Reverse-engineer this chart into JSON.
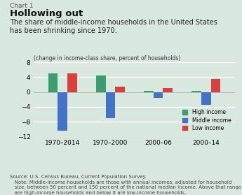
{
  "title_label": "Chart 1",
  "title": "Hollowing out",
  "subtitle": "The share of middle-income households in the United States\nhas been shrinking since 1970.",
  "ylabel": "(change in income-class share, percent of households)",
  "background_color": "#d9e8df",
  "groups": [
    "1970–2014",
    "1970–2000",
    "2000–06",
    "2000–14"
  ],
  "high_income": [
    5.0,
    4.5,
    0.3,
    0.3
  ],
  "middle_income": [
    -10.5,
    -7.0,
    -1.5,
    -3.5
  ],
  "low_income": [
    5.0,
    1.5,
    1.0,
    3.5
  ],
  "colors": {
    "high": "#3a9e6e",
    "middle": "#4472c4",
    "low": "#d84040"
  },
  "ylim": [
    -12,
    8
  ],
  "yticks": [
    -12,
    -8,
    -4,
    0,
    4,
    8
  ],
  "source_text": "Source: U.S. Census Bureau, Current Population Survey.\n   Note: Middle-income households are those with annual incomes, adjusted for household\n   size, between 50 percent and 150 percent of the national median income. Above that range\n   are high-income households and below it are low-income households."
}
